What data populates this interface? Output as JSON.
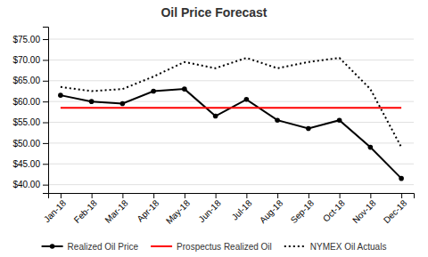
{
  "chart_data": {
    "type": "line",
    "title": "Oil Price Forecast",
    "categories": [
      "Jan-18",
      "Feb-18",
      "Mar-18",
      "Apr-18",
      "May-18",
      "Jun-18",
      "Jul-18",
      "Aug-18",
      "Sep-18",
      "Oct-18",
      "Nov-18",
      "Dec-18"
    ],
    "series": [
      {
        "name": "Realized Oil Price",
        "color": "#000000",
        "marker": "circle",
        "line_style": "solid",
        "values": [
          61.5,
          60.0,
          59.5,
          62.5,
          63.0,
          56.5,
          60.5,
          55.5,
          53.5,
          55.5,
          49.0,
          41.5
        ]
      },
      {
        "name": "Prospectus Realized Oil",
        "color": "#ff0000",
        "line_style": "solid",
        "values": [
          58.5,
          58.5,
          58.5,
          58.5,
          58.5,
          58.5,
          58.5,
          58.5,
          58.5,
          58.5,
          58.5,
          58.5
        ]
      },
      {
        "name": "NYMEX Oil Actuals",
        "color": "#000000",
        "line_style": "dotted",
        "values": [
          63.5,
          62.5,
          63.0,
          66.0,
          69.5,
          68.0,
          70.5,
          68.0,
          69.5,
          70.5,
          63.0,
          49.0
        ]
      }
    ],
    "ylim": [
      38,
      78
    ],
    "yticks": [
      {
        "value": 40,
        "label": "$40.00"
      },
      {
        "value": 45,
        "label": "$45.00"
      },
      {
        "value": 50,
        "label": "$50.00"
      },
      {
        "value": 55,
        "label": "$55.00"
      },
      {
        "value": 60,
        "label": "$60.00"
      },
      {
        "value": 65,
        "label": "$65.00"
      },
      {
        "value": 70,
        "label": "$70.00"
      },
      {
        "value": 75,
        "label": "$75.00"
      }
    ],
    "grid": true,
    "legend": "bottom"
  }
}
